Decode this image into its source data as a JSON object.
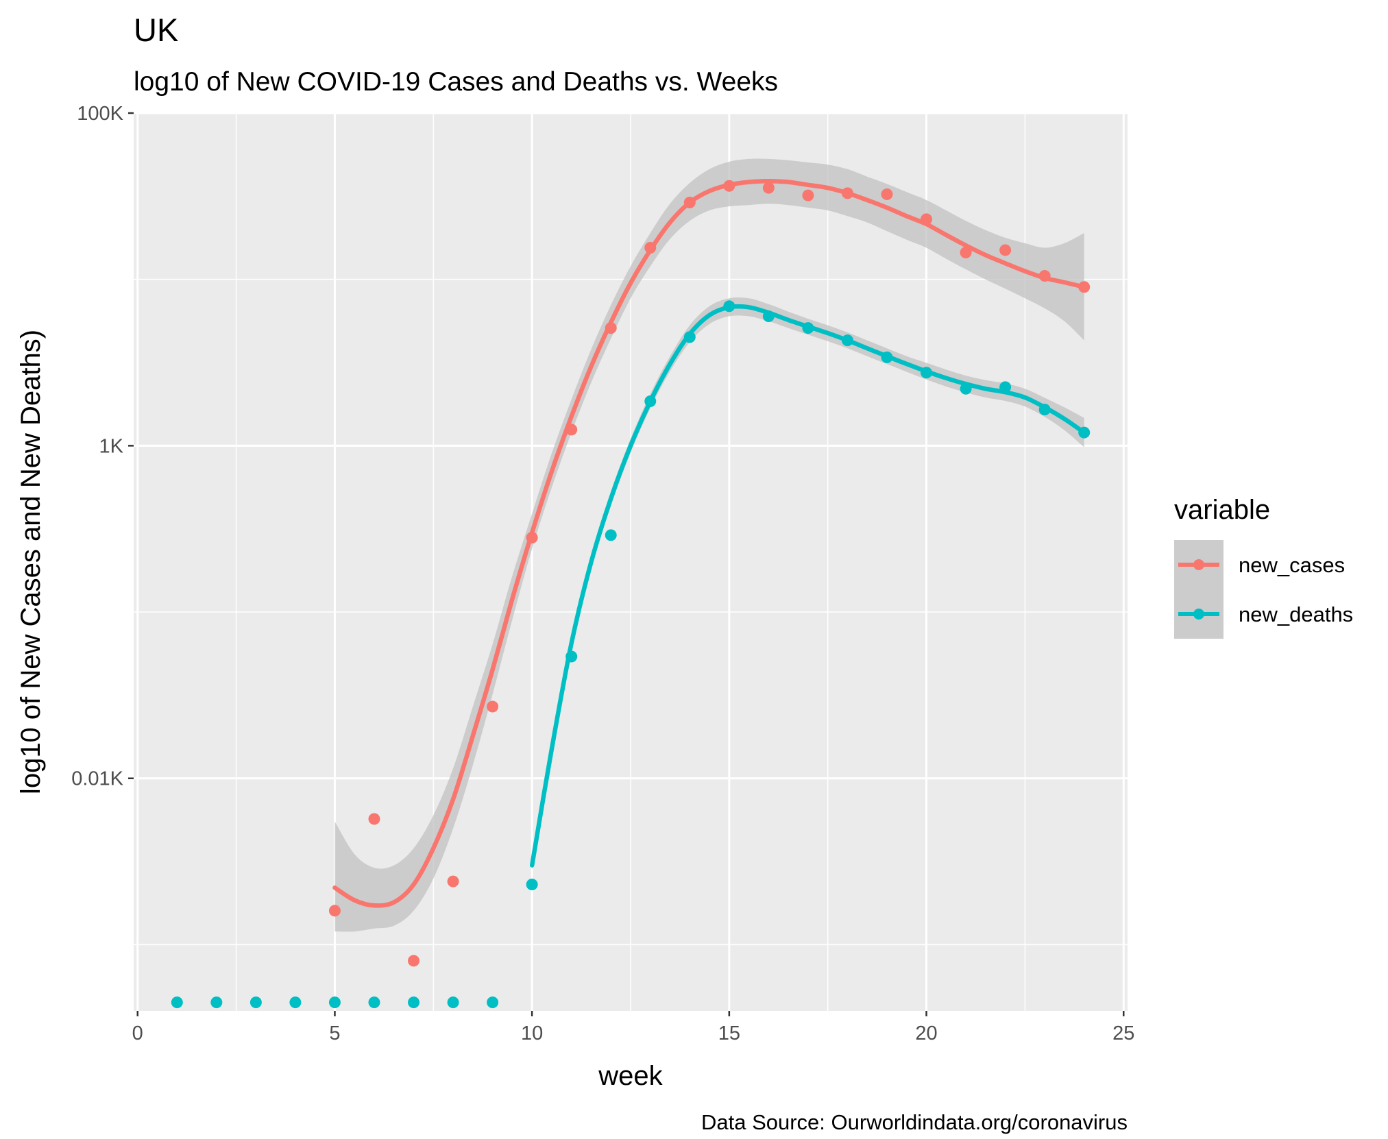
{
  "chart_data": {
    "type": "line",
    "title": "UK",
    "subtitle": "log10 of New COVID-19 Cases and Deaths vs. Weeks",
    "xlabel": "week",
    "ylabel": "log10 of New Cases and New Deaths)",
    "caption": "Data Source: Ourworldindata.org/coronavirus",
    "x_scale": "linear",
    "y_scale": "log10",
    "xlim": [
      -0.1,
      25.1
    ],
    "ylim": [
      0.4,
      100000
    ],
    "x_ticks": [
      0,
      5,
      10,
      15,
      20,
      25
    ],
    "x_tick_labels": [
      "0",
      "5",
      "10",
      "15",
      "20",
      "25"
    ],
    "y_ticks": [
      10,
      1000,
      100000
    ],
    "y_tick_labels": [
      "0.01K",
      "1K",
      "100K"
    ],
    "y_minor_ticks": [
      1,
      100,
      10000
    ],
    "grid": true,
    "legend": {
      "title": "variable",
      "position": "right",
      "entries": [
        "new_cases",
        "new_deaths"
      ]
    },
    "colors": {
      "panel_bg": "#ebebeb",
      "grid": "#ffffff",
      "ribbon": "#bfbfbf",
      "new_cases": "#f8766d",
      "new_deaths": "#00bfc4"
    },
    "series": [
      {
        "name": "new_cases",
        "points": [
          [
            5,
            1.6
          ],
          [
            6,
            5.7
          ],
          [
            7,
            0.8
          ],
          [
            8,
            2.4
          ],
          [
            9,
            27
          ],
          [
            10,
            280
          ],
          [
            11,
            1250
          ],
          [
            12,
            5100
          ],
          [
            13,
            15500
          ],
          [
            14,
            29000
          ],
          [
            15,
            36500
          ],
          [
            16,
            35500
          ],
          [
            17,
            32000
          ],
          [
            18,
            33000
          ],
          [
            19,
            32500
          ],
          [
            20,
            23000
          ],
          [
            21,
            14500
          ],
          [
            22,
            15000
          ],
          [
            23,
            10500
          ],
          [
            24,
            9000
          ]
        ],
        "smooth": [
          [
            5,
            2.2
          ],
          [
            5.5,
            1.85
          ],
          [
            6,
            1.72
          ],
          [
            6.5,
            1.8
          ],
          [
            7,
            2.3
          ],
          [
            7.5,
            3.8
          ],
          [
            8,
            7.5
          ],
          [
            8.5,
            18
          ],
          [
            9,
            45
          ],
          [
            9.5,
            120
          ],
          [
            10,
            300
          ],
          [
            10.5,
            700
          ],
          [
            11,
            1500
          ],
          [
            11.5,
            3000
          ],
          [
            12,
            5500
          ],
          [
            12.5,
            9500
          ],
          [
            13,
            15000
          ],
          [
            13.5,
            22000
          ],
          [
            14,
            29000
          ],
          [
            14.5,
            34000
          ],
          [
            15,
            37000
          ],
          [
            15.5,
            38500
          ],
          [
            16,
            39000
          ],
          [
            16.5,
            38500
          ],
          [
            17,
            37000
          ],
          [
            17.5,
            35500
          ],
          [
            18,
            33000
          ],
          [
            18.5,
            30000
          ],
          [
            19,
            27000
          ],
          [
            19.5,
            24000
          ],
          [
            20,
            21500
          ],
          [
            20.5,
            18500
          ],
          [
            21,
            16000
          ],
          [
            21.5,
            14000
          ],
          [
            22,
            12500
          ],
          [
            22.5,
            11200
          ],
          [
            23,
            10200
          ],
          [
            23.5,
            9600
          ],
          [
            24,
            9000
          ]
        ],
        "band": [
          [
            5,
            1.2,
            5.5
          ],
          [
            5.5,
            1.2,
            3.5
          ],
          [
            6,
            1.25,
            2.9
          ],
          [
            6.5,
            1.3,
            3.0
          ],
          [
            7,
            1.6,
            3.8
          ],
          [
            7.5,
            2.5,
            6.0
          ],
          [
            8,
            5.0,
            11.5
          ],
          [
            8.5,
            12.0,
            27.0
          ],
          [
            9,
            32.0,
            64.0
          ],
          [
            9.5,
            90.0,
            165.0
          ],
          [
            10,
            240.0,
            390.0
          ],
          [
            10.5,
            560.0,
            900.0
          ],
          [
            11,
            1200.0,
            1900.0
          ],
          [
            11.5,
            2400.0,
            3800.0
          ],
          [
            12,
            4400.0,
            7000.0
          ],
          [
            12.5,
            7700.0,
            12000.0
          ],
          [
            13,
            12000.0,
            19000.0
          ],
          [
            13.5,
            17500.0,
            28500.0
          ],
          [
            14,
            22500.0,
            38000.0
          ],
          [
            14.5,
            26000.0,
            46000.0
          ],
          [
            15,
            27500.0,
            51000.0
          ],
          [
            15.5,
            28000.0,
            53000.0
          ],
          [
            16,
            28500.0,
            53000.0
          ],
          [
            16.5,
            28000.0,
            52000.0
          ],
          [
            17,
            27000.0,
            50500.0
          ],
          [
            17.5,
            26000.0,
            49000.0
          ],
          [
            18,
            24000.0,
            46000.0
          ],
          [
            18.5,
            22000.0,
            41500.0
          ],
          [
            19,
            19500.0,
            37500.0
          ],
          [
            19.5,
            17300.0,
            33500.0
          ],
          [
            20,
            15500.0,
            30000.0
          ],
          [
            20.5,
            13300.0,
            26000.0
          ],
          [
            21,
            11500.0,
            22500.0
          ],
          [
            21.5,
            10000.0,
            19800.0
          ],
          [
            22,
            8800.0,
            17800.0
          ],
          [
            22.5,
            7700.0,
            16500.0
          ],
          [
            23,
            6700.0,
            15500.0
          ],
          [
            23.5,
            5600.0,
            16500.0
          ],
          [
            24,
            4300.0,
            19000.0
          ]
        ]
      },
      {
        "name": "new_deaths",
        "points": [
          [
            1,
            0.45
          ],
          [
            2,
            0.45
          ],
          [
            3,
            0.45
          ],
          [
            4,
            0.45
          ],
          [
            5,
            0.45
          ],
          [
            6,
            0.45
          ],
          [
            7,
            0.45
          ],
          [
            8,
            0.45
          ],
          [
            9,
            0.45
          ],
          [
            10,
            2.3
          ],
          [
            11,
            54
          ],
          [
            12,
            290
          ],
          [
            13,
            1850
          ],
          [
            14,
            4500
          ],
          [
            15,
            6900
          ],
          [
            16,
            6000
          ],
          [
            17,
            5100
          ],
          [
            18,
            4300
          ],
          [
            19,
            3400
          ],
          [
            20,
            2750
          ],
          [
            21,
            2200
          ],
          [
            22,
            2250
          ],
          [
            23,
            1650
          ],
          [
            24,
            1200
          ]
        ],
        "smooth": [
          [
            10,
            3.0
          ],
          [
            10.5,
            15
          ],
          [
            11,
            65
          ],
          [
            11.5,
            200
          ],
          [
            12,
            480
          ],
          [
            12.5,
            1000
          ],
          [
            13,
            1850
          ],
          [
            13.5,
            3100
          ],
          [
            14,
            4700
          ],
          [
            14.5,
            6100
          ],
          [
            15,
            6800
          ],
          [
            15.5,
            6800
          ],
          [
            16,
            6300
          ],
          [
            16.5,
            5700
          ],
          [
            17,
            5200
          ],
          [
            17.5,
            4750
          ],
          [
            18,
            4300
          ],
          [
            18.5,
            3850
          ],
          [
            19,
            3450
          ],
          [
            19.5,
            3100
          ],
          [
            20,
            2800
          ],
          [
            20.5,
            2550
          ],
          [
            21,
            2350
          ],
          [
            21.5,
            2200
          ],
          [
            22,
            2100
          ],
          [
            22.5,
            1950
          ],
          [
            23,
            1700
          ],
          [
            23.5,
            1450
          ],
          [
            24,
            1200
          ]
        ],
        "band": [
          [
            10,
            2.8,
            3.2
          ],
          [
            10.5,
            14.0,
            16.5
          ],
          [
            11,
            59.0,
            71.0
          ],
          [
            11.5,
            182.0,
            220.0
          ],
          [
            12,
            435.0,
            530.0
          ],
          [
            12.5,
            910.0,
            1100.0
          ],
          [
            13,
            1680.0,
            2050.0
          ],
          [
            13.5,
            2800.0,
            3450.0
          ],
          [
            14,
            4200.0,
            5300.0
          ],
          [
            14.5,
            5400.0,
            6900.0
          ],
          [
            15,
            6000.0,
            7700.0
          ],
          [
            15.5,
            6000.0,
            7700.0
          ],
          [
            16,
            5600.0,
            7100.0
          ],
          [
            16.5,
            5100.0,
            6400.0
          ],
          [
            17,
            4650.0,
            5800.0
          ],
          [
            17.5,
            4250.0,
            5300.0
          ],
          [
            18,
            3850.0,
            4800.0
          ],
          [
            18.5,
            3450.0,
            4300.0
          ],
          [
            19,
            3100.0,
            3850.0
          ],
          [
            19.5,
            2780.0,
            3450.0
          ],
          [
            20,
            2500.0,
            3150.0
          ],
          [
            20.5,
            2270.0,
            2870.0
          ],
          [
            21,
            2090.0,
            2640.0
          ],
          [
            21.5,
            1950.0,
            2480.0
          ],
          [
            22,
            1860.0,
            2370.0
          ],
          [
            22.5,
            1720.0,
            2200.0
          ],
          [
            23,
            1490.0,
            1940.0
          ],
          [
            23.5,
            1240.0,
            1700.0
          ],
          [
            24,
            980.0,
            1470.0
          ]
        ]
      }
    ]
  }
}
